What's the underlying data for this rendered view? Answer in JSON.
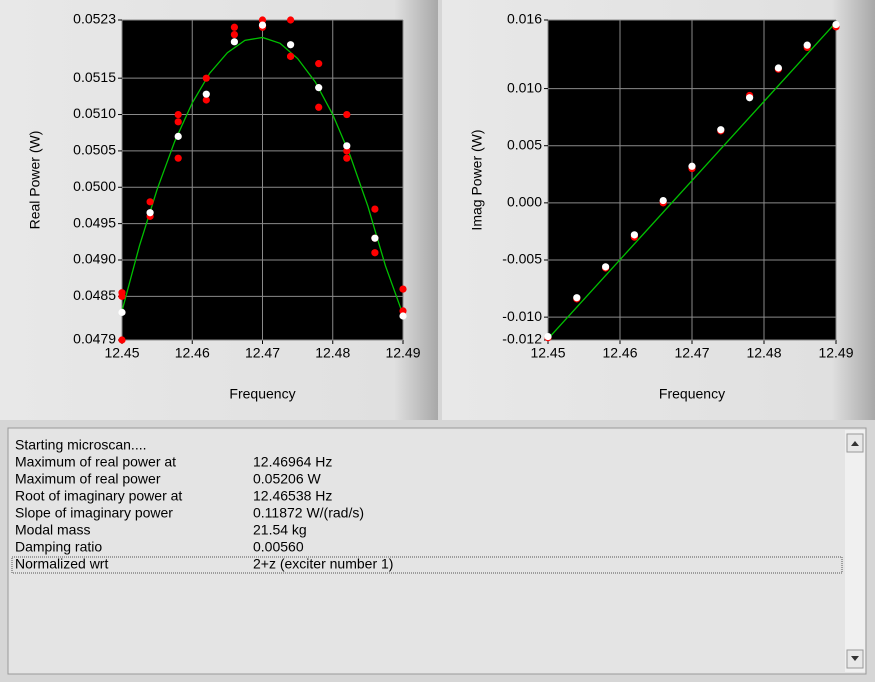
{
  "chart_data": [
    {
      "type": "scatter",
      "xlabel": "Frequency",
      "ylabel": "Real Power (W)",
      "xlim": [
        12.45,
        12.49
      ],
      "xticks": [
        12.45,
        12.46,
        12.47,
        12.48,
        12.49
      ],
      "ylim": [
        0.0479,
        0.0523
      ],
      "yticks": [
        0.0479,
        0.0485,
        {
          "value": 0.049,
          "label": "0.0490"
        },
        0.0495,
        {
          "value": 0.05,
          "label": "0.0500"
        },
        0.0505,
        {
          "value": 0.051,
          "label": "0.0510"
        },
        0.0515,
        0.0523
      ],
      "grid": true,
      "series": [
        {
          "color": "#00c000",
          "style": "line",
          "x": [
            12.45,
            12.4525,
            12.455,
            12.4575,
            12.46,
            12.4625,
            12.465,
            12.4675,
            12.47,
            12.4725,
            12.475,
            12.4775,
            12.48,
            12.4825,
            12.485,
            12.4875,
            12.49
          ],
          "values": [
            0.0483,
            0.0492,
            0.04997,
            0.05063,
            0.05116,
            0.05157,
            0.05185,
            0.05202,
            0.05206,
            0.05198,
            0.05177,
            0.05145,
            0.051,
            0.05043,
            0.04974,
            0.04892,
            0.04825
          ]
        },
        {
          "color": "#ff0000",
          "style": "markers",
          "x": [
            12.45,
            12.45,
            12.45,
            12.454,
            12.454,
            12.458,
            12.458,
            12.458,
            12.462,
            12.462,
            12.466,
            12.466,
            12.47,
            12.47,
            12.474,
            12.474,
            12.474,
            12.478,
            12.478,
            12.482,
            12.482,
            12.482,
            12.486,
            12.486,
            12.486,
            12.49,
            12.49
          ],
          "values": [
            0.04855,
            0.0485,
            0.0479,
            0.0498,
            0.0496,
            0.051,
            0.0509,
            0.0504,
            0.0515,
            0.0512,
            0.0521,
            0.0522,
            0.0523,
            0.0522,
            0.0523,
            0.0518,
            0.0518,
            0.0517,
            0.0511,
            0.051,
            0.0504,
            0.0505,
            0.0497,
            0.0491,
            0.0493,
            0.0486,
            0.0483
          ]
        },
        {
          "color": "#ffffff",
          "style": "markers",
          "x": [
            12.45,
            12.454,
            12.458,
            12.462,
            12.466,
            12.47,
            12.474,
            12.478,
            12.482,
            12.486,
            12.49
          ],
          "values": [
            0.04828,
            0.04965,
            0.0507,
            0.05128,
            0.052,
            0.05223,
            0.05196,
            0.05137,
            0.05057,
            0.0493,
            0.04823
          ]
        }
      ]
    },
    {
      "type": "scatter",
      "xlabel": "Frequency",
      "ylabel": "Imag Power (W)",
      "xlim": [
        12.45,
        12.49
      ],
      "xticks": [
        12.45,
        12.46,
        12.47,
        12.48,
        12.49
      ],
      "ylim": [
        -0.012,
        0.016
      ],
      "yticks": [
        -0.012,
        {
          "value": -0.01,
          "label": "-0.010"
        },
        -0.005,
        {
          "value": 0,
          "label": "0.000"
        },
        0.005,
        {
          "value": 0.01,
          "label": "0.010"
        },
        0.016
      ],
      "grid": true,
      "series": [
        {
          "color": "#00c000",
          "style": "line",
          "x": [
            12.45,
            12.49
          ],
          "values": [
            -0.0119,
            0.0158
          ]
        },
        {
          "color": "#ff0000",
          "style": "markers",
          "x": [
            12.45,
            12.454,
            12.458,
            12.462,
            12.466,
            12.47,
            12.474,
            12.478,
            12.482,
            12.486,
            12.49
          ],
          "values": [
            -0.0118,
            -0.0084,
            -0.0057,
            -0.003,
            0,
            0.003,
            0.0063,
            0.0094,
            0.0117,
            0.0136,
            0.0154
          ]
        },
        {
          "color": "#ffffff",
          "style": "markers",
          "x": [
            12.45,
            12.454,
            12.458,
            12.462,
            12.466,
            12.47,
            12.474,
            12.478,
            12.482,
            12.486,
            12.49
          ],
          "values": [
            -0.0117,
            -0.0083,
            -0.0056,
            -0.0028,
            0.0002,
            0.0032,
            0.0064,
            0.0092,
            0.0118,
            0.0138,
            0.0156
          ]
        }
      ]
    }
  ],
  "log": {
    "header": "Starting microscan....",
    "rows": [
      [
        "Maximum of real power at",
        "12.46964 Hz"
      ],
      [
        "Maximum of real power",
        "0.05206 W"
      ],
      [
        "Root of imaginary power at",
        "12.46538 Hz"
      ],
      [
        "Slope of imaginary power",
        "0.11872 W/(rad/s)"
      ],
      [
        "Modal mass",
        "21.54 kg"
      ],
      [
        "Damping ratio",
        "0.00560"
      ],
      [
        "Normalized wrt",
        "2+z (exciter number 1)"
      ]
    ]
  }
}
